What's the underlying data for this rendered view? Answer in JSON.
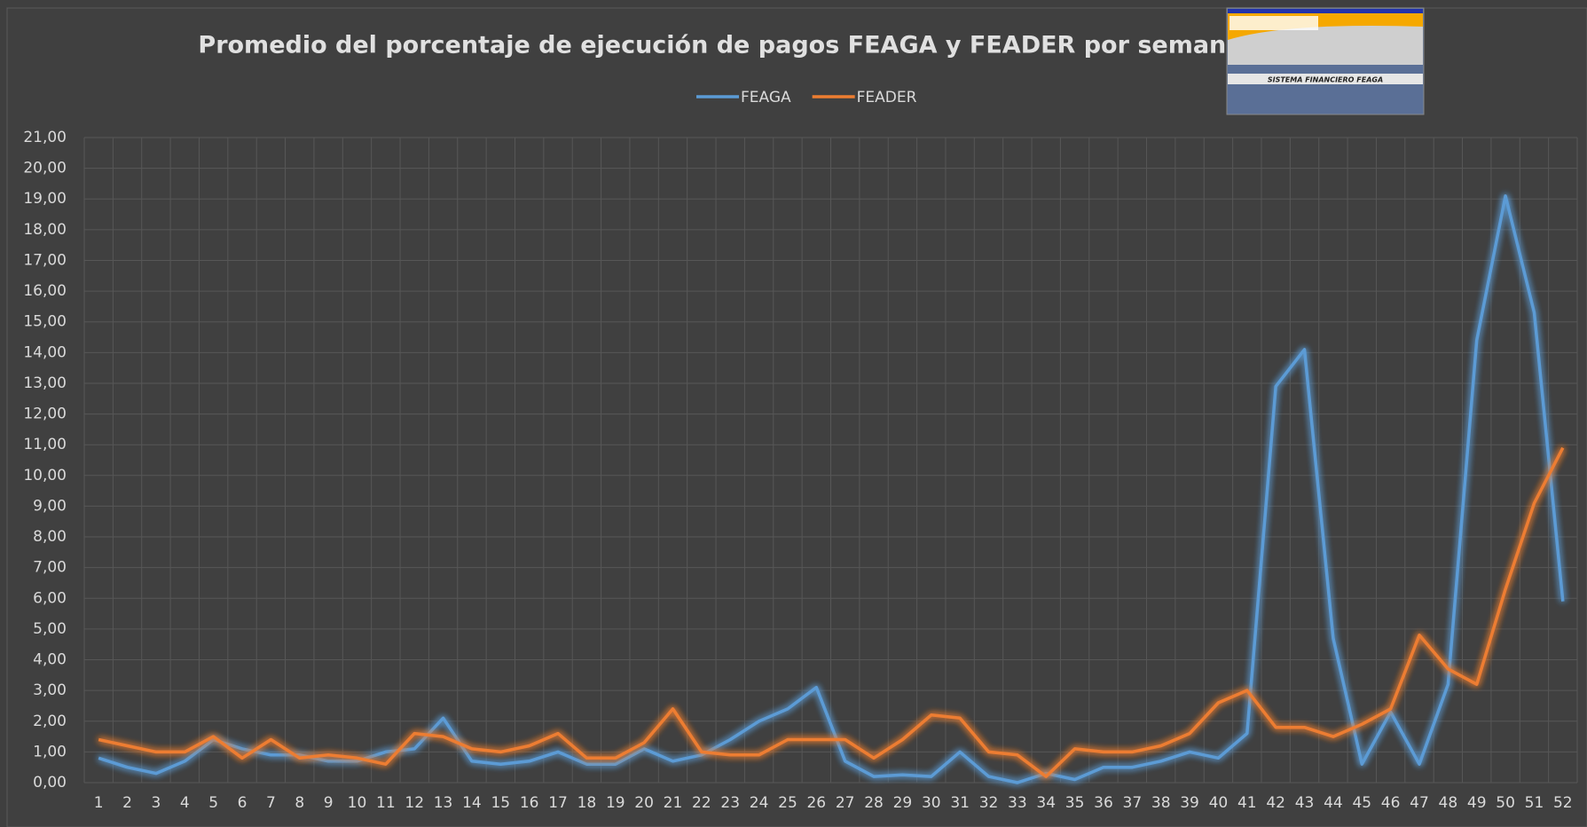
{
  "chart_data": {
    "type": "line",
    "title": "Promedio del porcentaje de ejecución de pagos FEAGA y FEADER por semanas",
    "categories": [
      "1",
      "2",
      "3",
      "4",
      "5",
      "6",
      "7",
      "8",
      "9",
      "10",
      "11",
      "12",
      "13",
      "14",
      "15",
      "16",
      "17",
      "18",
      "19",
      "20",
      "21",
      "22",
      "23",
      "24",
      "25",
      "26",
      "27",
      "28",
      "29",
      "30",
      "31",
      "32",
      "33",
      "34",
      "35",
      "36",
      "37",
      "38",
      "39",
      "40",
      "41",
      "42",
      "43",
      "44",
      "45",
      "46",
      "47",
      "48",
      "49",
      "50",
      "51",
      "52"
    ],
    "series": [
      {
        "name": "FEAGA",
        "color": "#5b9bd5",
        "values": [
          0.8,
          0.5,
          0.3,
          0.7,
          1.4,
          1.1,
          0.9,
          0.9,
          0.7,
          0.7,
          1.0,
          1.1,
          2.1,
          0.7,
          0.6,
          0.7,
          1.0,
          0.6,
          0.6,
          1.1,
          0.7,
          0.9,
          1.4,
          2.0,
          2.4,
          3.1,
          0.7,
          0.2,
          0.25,
          0.2,
          1.0,
          0.2,
          0.0,
          0.3,
          0.1,
          0.5,
          0.5,
          0.7,
          1.0,
          0.8,
          1.6,
          12.9,
          14.1,
          4.7,
          0.6,
          2.3,
          0.6,
          3.2,
          14.4,
          19.1,
          15.3,
          5.9
        ]
      },
      {
        "name": "FEADER",
        "color": "#ed7d31",
        "values": [
          1.4,
          1.2,
          1.0,
          1.0,
          1.5,
          0.8,
          1.4,
          0.8,
          0.9,
          0.8,
          0.6,
          1.6,
          1.5,
          1.1,
          1.0,
          1.2,
          1.6,
          0.8,
          0.8,
          1.3,
          2.4,
          1.0,
          0.9,
          0.9,
          1.4,
          1.4,
          1.4,
          0.8,
          1.4,
          2.2,
          2.1,
          1.0,
          0.9,
          0.2,
          1.1,
          1.0,
          1.0,
          1.2,
          1.6,
          2.6,
          3.0,
          1.8,
          1.8,
          1.5,
          1.9,
          2.4,
          4.8,
          3.7,
          3.2,
          6.3,
          9.1,
          10.9
        ]
      }
    ],
    "ylim": [
      0,
      21
    ],
    "yticks": [
      {
        "value": 0,
        "label": "0,00"
      },
      {
        "value": 1,
        "label": "1,00"
      },
      {
        "value": 2,
        "label": "2,00"
      },
      {
        "value": 3,
        "label": "3,00"
      },
      {
        "value": 4,
        "label": "4,00"
      },
      {
        "value": 5,
        "label": "5,00"
      },
      {
        "value": 6,
        "label": "6,00"
      },
      {
        "value": 7,
        "label": "7,00"
      },
      {
        "value": 8,
        "label": "8,00"
      },
      {
        "value": 9,
        "label": "9,00"
      },
      {
        "value": 10,
        "label": "10,00"
      },
      {
        "value": 11,
        "label": "11,00"
      },
      {
        "value": 12,
        "label": "12,00"
      },
      {
        "value": 13,
        "label": "13,00"
      },
      {
        "value": 14,
        "label": "14,00"
      },
      {
        "value": 15,
        "label": "15,00"
      },
      {
        "value": 16,
        "label": "16,00"
      },
      {
        "value": 17,
        "label": "17,00"
      },
      {
        "value": 18,
        "label": "18,00"
      },
      {
        "value": 19,
        "label": "19,00"
      },
      {
        "value": 20,
        "label": "20,00"
      },
      {
        "value": 21,
        "label": "21,00"
      }
    ],
    "grid": true,
    "legend": "top"
  },
  "inset": {
    "label": "SISTEMA FINANCIERO FEAGA"
  }
}
